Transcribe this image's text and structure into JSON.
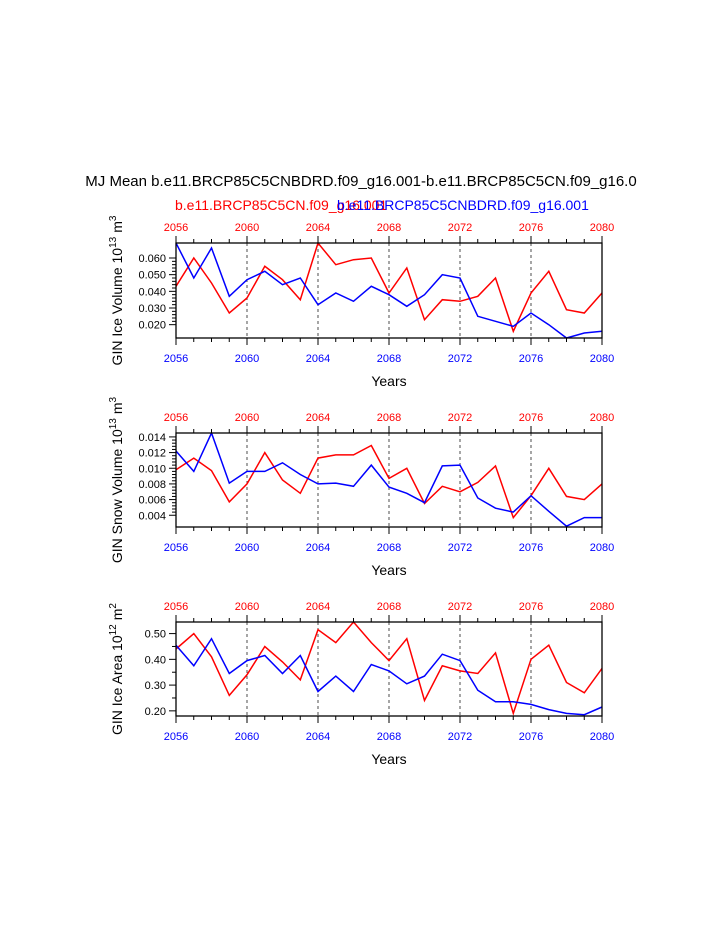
{
  "title": "MJ Mean b.e11.BRCP85C5CNBDRD.f09_g16.001-b.e11.BRCP85C5CN.f09_g16.0",
  "legend": {
    "red_label": "b.e11.BRCP85C5CN.f09_g16.001",
    "blue_label": "b.e11.BRCP85C5CNBDRD.f09_g16.001"
  },
  "colors": {
    "red": "#ff0000",
    "blue": "#0000ff",
    "axis": "#000000"
  },
  "chart_data": [
    {
      "type": "line",
      "name": "ice-volume",
      "ylabel_main": "GIN Ice Volume 10",
      "ylabel_exp": "13",
      "ylabel_unit": "m",
      "ylabel_unit_exp": "3",
      "xlabel": "Years",
      "xlim": [
        2056,
        2080
      ],
      "ylim": [
        0.012,
        0.069
      ],
      "xticks": [
        2056,
        2060,
        2064,
        2068,
        2072,
        2076,
        2080
      ],
      "yticks": [
        0.02,
        0.03,
        0.04,
        0.05,
        0.06
      ],
      "ytick_labels": [
        "0.020",
        "0.030",
        "0.040",
        "0.050",
        "0.060"
      ],
      "x": [
        2056,
        2057,
        2058,
        2059,
        2060,
        2061,
        2062,
        2063,
        2064,
        2065,
        2066,
        2067,
        2068,
        2069,
        2070,
        2071,
        2072,
        2073,
        2074,
        2075,
        2076,
        2077,
        2078,
        2079,
        2080
      ],
      "series": [
        {
          "name": "b.e11.BRCP85C5CN.f09_g16.001",
          "color": "red",
          "values": [
            0.043,
            0.06,
            0.045,
            0.027,
            0.036,
            0.055,
            0.047,
            0.035,
            0.069,
            0.056,
            0.059,
            0.06,
            0.039,
            0.054,
            0.023,
            0.035,
            0.034,
            0.037,
            0.048,
            0.016,
            0.039,
            0.052,
            0.029,
            0.027,
            0.039
          ]
        },
        {
          "name": "b.e11.BRCP85C5CNBDRD.f09_g16.001",
          "color": "blue",
          "values": [
            0.069,
            0.048,
            0.066,
            0.037,
            0.047,
            0.052,
            0.044,
            0.048,
            0.032,
            0.039,
            0.034,
            0.043,
            0.038,
            0.031,
            0.038,
            0.05,
            0.048,
            0.025,
            0.022,
            0.019,
            0.027,
            0.02,
            0.012,
            0.015,
            0.016
          ]
        }
      ]
    },
    {
      "type": "line",
      "name": "snow-volume",
      "ylabel_main": "GIN Snow Volume 10",
      "ylabel_exp": "13",
      "ylabel_unit": "m",
      "ylabel_unit_exp": "3",
      "xlabel": "Years",
      "xlim": [
        2056,
        2080
      ],
      "ylim": [
        0.0025,
        0.0145
      ],
      "xticks": [
        2056,
        2060,
        2064,
        2068,
        2072,
        2076,
        2080
      ],
      "yticks": [
        0.004,
        0.006,
        0.008,
        0.01,
        0.012,
        0.014
      ],
      "ytick_labels": [
        "0.004",
        "0.006",
        "0.008",
        "0.010",
        "0.012",
        "0.014"
      ],
      "x": [
        2056,
        2057,
        2058,
        2059,
        2060,
        2061,
        2062,
        2063,
        2064,
        2065,
        2066,
        2067,
        2068,
        2069,
        2070,
        2071,
        2072,
        2073,
        2074,
        2075,
        2076,
        2077,
        2078,
        2079,
        2080
      ],
      "series": [
        {
          "name": "b.e11.BRCP85C5CN.f09_g16.001",
          "color": "red",
          "values": [
            0.0098,
            0.0113,
            0.0097,
            0.0057,
            0.008,
            0.012,
            0.0085,
            0.0068,
            0.0113,
            0.0117,
            0.0117,
            0.0129,
            0.0087,
            0.01,
            0.0055,
            0.0077,
            0.007,
            0.0082,
            0.0103,
            0.0037,
            0.0065,
            0.01,
            0.0064,
            0.006,
            0.008
          ]
        },
        {
          "name": "b.e11.BRCP85C5CNBDRD.f09_g16.001",
          "color": "blue",
          "values": [
            0.0122,
            0.0096,
            0.0145,
            0.0081,
            0.0096,
            0.0096,
            0.0107,
            0.0092,
            0.008,
            0.0081,
            0.0077,
            0.0104,
            0.0076,
            0.0068,
            0.0056,
            0.0103,
            0.0104,
            0.0062,
            0.0049,
            0.0044,
            0.0065,
            0.0045,
            0.0026,
            0.0037,
            0.0037
          ]
        }
      ]
    },
    {
      "type": "line",
      "name": "ice-area",
      "ylabel_main": "GIN Ice Area 10",
      "ylabel_exp": "12",
      "ylabel_unit": "m",
      "ylabel_unit_exp": "2",
      "xlabel": "Years",
      "xlim": [
        2056,
        2080
      ],
      "ylim": [
        0.18,
        0.545
      ],
      "xticks": [
        2056,
        2060,
        2064,
        2068,
        2072,
        2076,
        2080
      ],
      "yticks": [
        0.2,
        0.3,
        0.4,
        0.5
      ],
      "ytick_labels": [
        "0.20",
        "0.30",
        "0.40",
        "0.50"
      ],
      "minor_yticks": [
        0.25,
        0.35,
        0.45
      ],
      "x": [
        2056,
        2057,
        2058,
        2059,
        2060,
        2061,
        2062,
        2063,
        2064,
        2065,
        2066,
        2067,
        2068,
        2069,
        2070,
        2071,
        2072,
        2073,
        2074,
        2075,
        2076,
        2077,
        2078,
        2079,
        2080
      ],
      "series": [
        {
          "name": "b.e11.BRCP85C5CN.f09_g16.001",
          "color": "red",
          "values": [
            0.44,
            0.5,
            0.41,
            0.26,
            0.34,
            0.45,
            0.39,
            0.32,
            0.515,
            0.465,
            0.545,
            0.465,
            0.395,
            0.48,
            0.24,
            0.375,
            0.355,
            0.345,
            0.425,
            0.19,
            0.4,
            0.455,
            0.31,
            0.27,
            0.365
          ]
        },
        {
          "name": "b.e11.BRCP85C5CNBDRD.f09_g16.001",
          "color": "blue",
          "values": [
            0.455,
            0.375,
            0.48,
            0.345,
            0.395,
            0.415,
            0.345,
            0.415,
            0.275,
            0.335,
            0.275,
            0.38,
            0.355,
            0.305,
            0.335,
            0.42,
            0.395,
            0.28,
            0.235,
            0.235,
            0.225,
            0.205,
            0.19,
            0.185,
            0.215
          ]
        }
      ]
    }
  ]
}
